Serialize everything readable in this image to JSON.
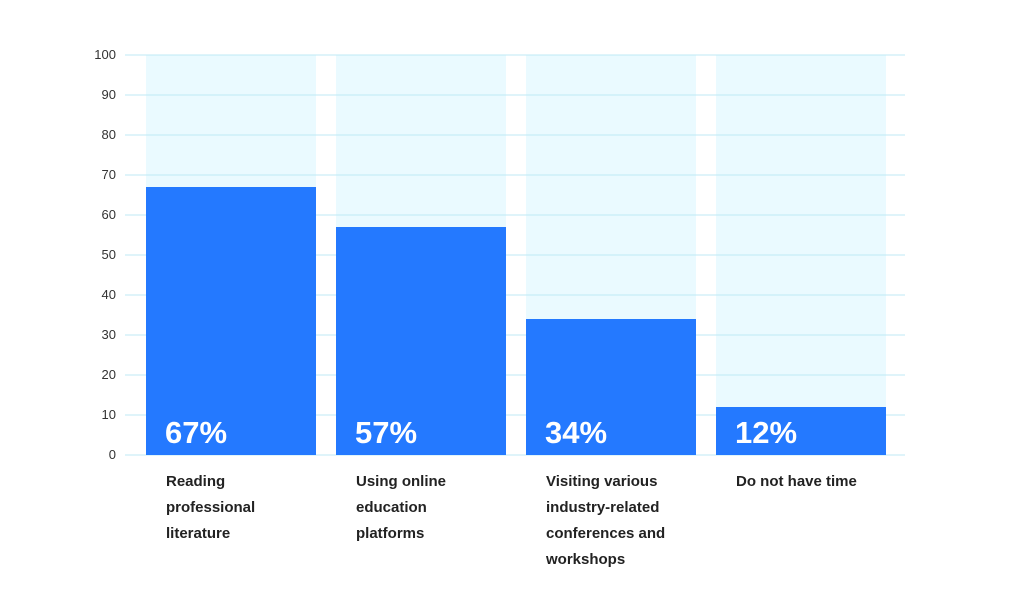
{
  "chart_data": {
    "type": "bar",
    "title": "",
    "xlabel": "",
    "ylabel": "",
    "ylim": [
      0,
      100
    ],
    "yticks": [
      0,
      10,
      20,
      30,
      40,
      50,
      60,
      70,
      80,
      90,
      100
    ],
    "grid": true,
    "legend": "none",
    "categories": [
      [
        "Reading",
        "professional",
        "literature"
      ],
      [
        "Using online",
        "education",
        "platforms"
      ],
      [
        "Visiting various",
        "industry-related",
        "conferences and",
        "workshops"
      ],
      [
        "Do not have time"
      ]
    ],
    "values": [
      67,
      57,
      34,
      12
    ],
    "data_labels": [
      "67%",
      "57%",
      "34%",
      "12%"
    ],
    "colors": {
      "bar": "#2479ff",
      "background_band": "#eafaff",
      "grid": "#bfe9f5"
    }
  }
}
